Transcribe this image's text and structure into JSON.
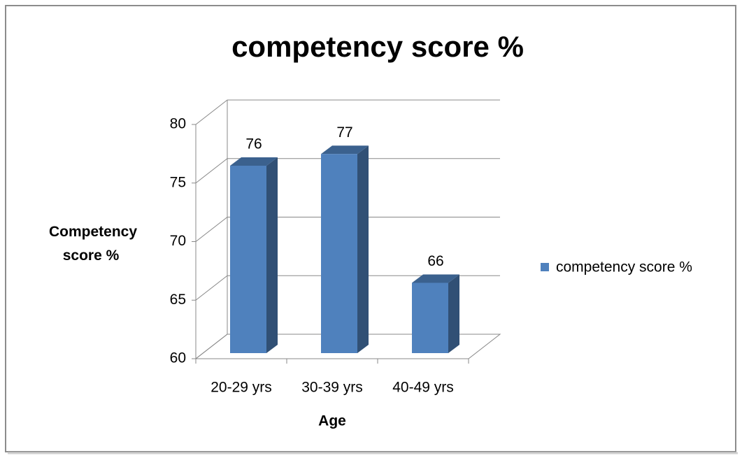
{
  "chart_data": {
    "type": "bar3d",
    "title": "competency score %",
    "x_label": "Age",
    "y_label": "Competency score %",
    "categories": [
      "20-29 yrs",
      "30-39 yrs",
      "40-49 yrs"
    ],
    "series": [
      {
        "name": "competency score %",
        "color": "#4f81bd",
        "values": [
          76,
          77,
          66
        ]
      }
    ],
    "ylim": [
      60,
      80
    ],
    "yticks": [
      60,
      65,
      70,
      75,
      80
    ],
    "grid": true,
    "legend": "right",
    "data_labels": true
  }
}
